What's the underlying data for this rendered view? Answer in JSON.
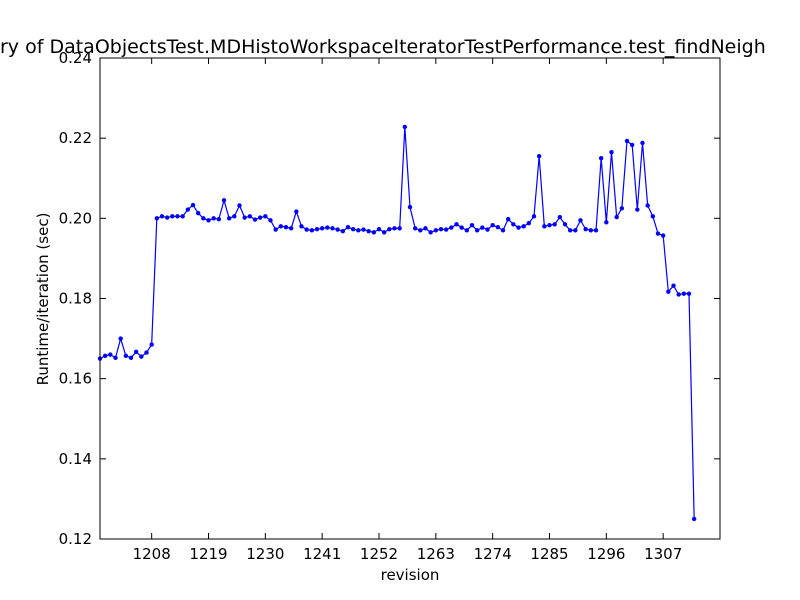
{
  "chart_data": {
    "type": "line",
    "title": "ry of DataObjectsTest.MDHistoWorkspaceIteratorTestPerformance.test_findNeigh",
    "x_label": "revision",
    "y_label": "Runtime/iteration (sec)",
    "x": [
      1198,
      1199,
      1200,
      1201,
      1202,
      1203,
      1204,
      1205,
      1206,
      1207,
      1208,
      1209,
      1210,
      1211,
      1212,
      1213,
      1214,
      1215,
      1216,
      1217,
      1218,
      1219,
      1220,
      1221,
      1222,
      1223,
      1224,
      1225,
      1226,
      1227,
      1228,
      1229,
      1230,
      1231,
      1232,
      1233,
      1234,
      1235,
      1236,
      1237,
      1238,
      1239,
      1240,
      1241,
      1242,
      1243,
      1244,
      1245,
      1246,
      1247,
      1248,
      1249,
      1250,
      1251,
      1252,
      1253,
      1254,
      1255,
      1256,
      1257,
      1258,
      1259,
      1260,
      1261,
      1262,
      1263,
      1264,
      1265,
      1266,
      1267,
      1268,
      1269,
      1270,
      1271,
      1272,
      1273,
      1274,
      1275,
      1276,
      1277,
      1278,
      1279,
      1280,
      1281,
      1282,
      1283,
      1284,
      1285,
      1286,
      1287,
      1288,
      1289,
      1290,
      1291,
      1292,
      1293,
      1294,
      1295,
      1296,
      1297,
      1298,
      1299,
      1300,
      1301,
      1302,
      1303,
      1304,
      1305,
      1306,
      1307,
      1308,
      1309,
      1310,
      1311,
      1312,
      1313
    ],
    "series": [
      {
        "name": "runtime",
        "color": "#0000ff",
        "values": [
          0.165,
          0.1657,
          0.166,
          0.1652,
          0.17,
          0.1657,
          0.1652,
          0.1667,
          0.1655,
          0.1665,
          0.1685,
          0.2,
          0.2005,
          0.2002,
          0.2005,
          0.2005,
          0.2005,
          0.2022,
          0.2033,
          0.2013,
          0.2,
          0.1995,
          0.2,
          0.1998,
          0.2045,
          0.2,
          0.2005,
          0.2032,
          0.2002,
          0.2005,
          0.1997,
          0.2002,
          0.2005,
          0.1995,
          0.1972,
          0.198,
          0.1978,
          0.1975,
          0.2017,
          0.198,
          0.1972,
          0.197,
          0.1973,
          0.1975,
          0.1977,
          0.1975,
          0.1972,
          0.1968,
          0.1978,
          0.1973,
          0.197,
          0.1972,
          0.1968,
          0.1965,
          0.1973,
          0.1965,
          0.1973,
          0.1975,
          0.1975,
          0.2228,
          0.2028,
          0.1975,
          0.197,
          0.1975,
          0.1965,
          0.197,
          0.1973,
          0.1972,
          0.1977,
          0.1985,
          0.1977,
          0.197,
          0.1983,
          0.197,
          0.1977,
          0.1972,
          0.1983,
          0.1978,
          0.197,
          0.1998,
          0.1985,
          0.1977,
          0.198,
          0.1988,
          0.2005,
          0.2155,
          0.198,
          0.1983,
          0.1985,
          0.2003,
          0.1985,
          0.197,
          0.197,
          0.1995,
          0.1973,
          0.197,
          0.197,
          0.215,
          0.199,
          0.2165,
          0.2003,
          0.2025,
          0.2193,
          0.2183,
          0.2022,
          0.2188,
          0.2032,
          0.2005,
          0.1962,
          0.1957,
          0.1817,
          0.1832,
          0.181,
          0.1812,
          0.1812,
          0.125
        ]
      }
    ],
    "xlim": [
      1198,
      1318
    ],
    "xticks": [
      1208,
      1219,
      1230,
      1241,
      1252,
      1263,
      1274,
      1285,
      1296,
      1307
    ],
    "ylim": [
      0.12,
      0.24
    ],
    "yticks": [
      0.12,
      0.14,
      0.16,
      0.18,
      {
        "value": 0.2,
        "label": "0.20"
      },
      0.22,
      0.24
    ]
  }
}
